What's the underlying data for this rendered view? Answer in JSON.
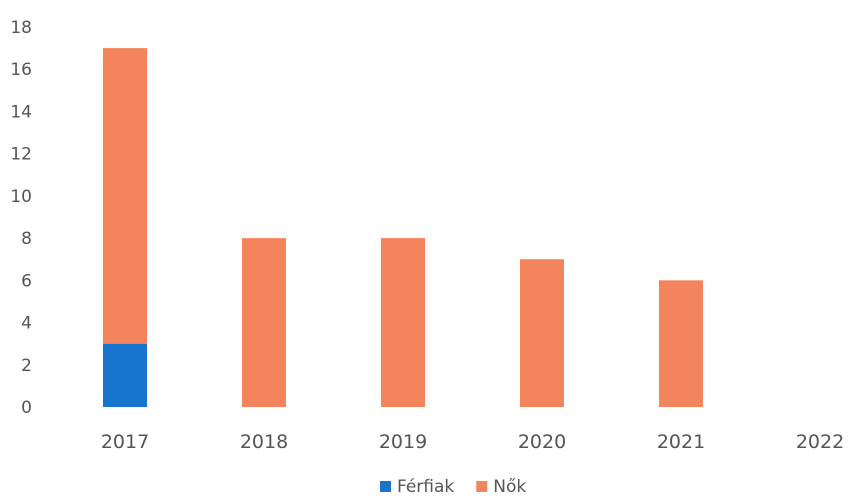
{
  "chart_data": {
    "type": "bar",
    "stacked": true,
    "categories": [
      "2017",
      "2018",
      "2019",
      "2020",
      "2021",
      "2022"
    ],
    "series": [
      {
        "name": "Férfiak",
        "color": "#1874CD",
        "values": [
          3,
          0,
          0,
          0,
          0,
          0
        ]
      },
      {
        "name": "Nők",
        "color": "#F4845C",
        "values": [
          14,
          8,
          8,
          7,
          6,
          0
        ]
      }
    ],
    "yticks": [
      "0",
      "2",
      "4",
      "6",
      "8",
      "10",
      "12",
      "14",
      "16",
      "18"
    ],
    "ylim": [
      0,
      18
    ],
    "grid": false,
    "legend_position": "bottom"
  }
}
